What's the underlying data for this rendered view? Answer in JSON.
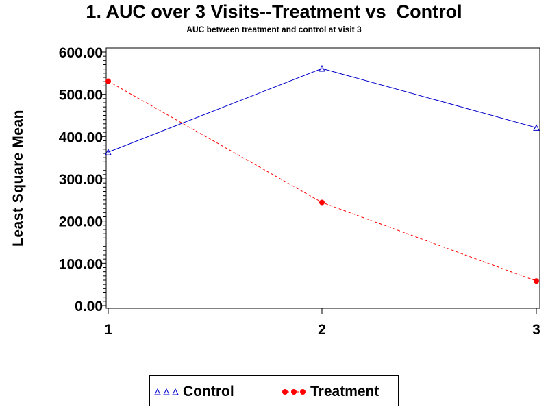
{
  "chart_data": {
    "type": "line",
    "title": "1. AUC over 3 Visits--Treatment vs  Control",
    "subtitle": "AUC between treatment and control at visit 3",
    "xlabel": "",
    "ylabel": "Least Square Mean",
    "x": [
      1,
      2,
      3
    ],
    "x_tick_labels": [
      "1",
      "2",
      "3"
    ],
    "ylim": [
      0,
      600
    ],
    "y_ticks": [
      0,
      100,
      200,
      300,
      400,
      500,
      600
    ],
    "y_tick_labels": [
      "0.00",
      "100.00",
      "200.00",
      "300.00",
      "400.00",
      "500.00",
      "600.00"
    ],
    "grid": false,
    "legend_position": "bottom",
    "series": [
      {
        "name": "Control",
        "values": [
          363,
          561,
          421
        ],
        "color": "#0000cc",
        "marker": "triangle-open",
        "line_style": "solid"
      },
      {
        "name": "Treatment",
        "values": [
          531,
          244,
          58
        ],
        "color": "#ff0000",
        "marker": "circle-filled",
        "line_style": "dashed"
      }
    ]
  }
}
